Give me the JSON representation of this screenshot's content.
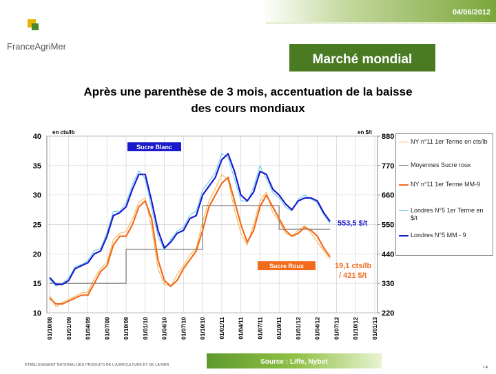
{
  "header": {
    "date": "04/06/2012",
    "logo": "FranceAgriMer",
    "section": "Marché mondial",
    "title": "Après une parenthèse de 3 mois, accentuation de la baisse des cours mondiaux"
  },
  "footer": {
    "institution": "ÉTABLISSEMENT NATIONAL DES PRODUITS DE L'AGRICULTURE ET DE LA MER",
    "source": "Source : Liffe, Nybot",
    "page": "• 4"
  },
  "chart_data": {
    "type": "line",
    "ylabel": "en cts/lb",
    "y2label": "en $/t",
    "annotations": [
      "Sucre Blanc",
      "Sucre Roux",
      "553,5 $/t",
      "19,1 cts/lb",
      "/ 421 $/t"
    ],
    "x": [
      "01/10/08",
      "01/11/08",
      "01/12/08",
      "01/01/09",
      "01/02/09",
      "01/03/09",
      "01/04/09",
      "01/05/09",
      "01/06/09",
      "01/07/09",
      "01/08/09",
      "01/09/09",
      "01/10/09",
      "01/11/09",
      "01/12/09",
      "01/01/10",
      "01/02/10",
      "01/03/10",
      "01/04/10",
      "01/05/10",
      "01/06/10",
      "01/07/10",
      "01/08/10",
      "01/09/10",
      "01/10/10",
      "01/11/10",
      "01/12/10",
      "01/01/11",
      "01/02/11",
      "01/03/11",
      "01/04/11",
      "01/05/11",
      "01/06/11",
      "01/07/11",
      "01/08/11",
      "01/09/11",
      "01/10/11",
      "01/11/11",
      "01/12/11",
      "01/01/12",
      "01/02/12",
      "01/03/12",
      "01/04/12",
      "01/05/12",
      "01/06/12"
    ],
    "xlim": [
      "01/10/08",
      "01/01/13"
    ],
    "xticks": [
      "01/10/08",
      "01/01/09",
      "01/04/09",
      "01/07/09",
      "01/10/09",
      "01/01/10",
      "01/04/10",
      "01/07/10",
      "01/10/10",
      "01/01/11",
      "01/04/11",
      "01/07/11",
      "01/10/11",
      "01/01/12",
      "01/04/12",
      "01/07/12",
      "01/10/12",
      "01/01/13"
    ],
    "ylim": [
      10,
      40
    ],
    "yticks": [
      10,
      15,
      20,
      25,
      30,
      35,
      40
    ],
    "y2lim": [
      220,
      880
    ],
    "y2ticks": [
      220,
      330,
      440,
      550,
      660,
      770,
      880
    ],
    "grid": true,
    "series": [
      {
        "name": "NY n°11 1er Terme en cts/lb",
        "color": "#f5b041",
        "width": 1,
        "values": [
          13,
          11,
          11.8,
          12.3,
          12.8,
          13.4,
          13.5,
          15.8,
          17.5,
          18.6,
          22.4,
          23.5,
          23.8,
          26,
          28.8,
          29.5,
          24.5,
          17.5,
          14.8,
          14.5,
          16.5,
          18,
          19.8,
          21,
          25.5,
          29,
          31,
          33.5,
          32.5,
          27.5,
          23.5,
          21.5,
          25,
          29,
          30.5,
          27,
          25.5,
          23.5,
          23,
          24,
          24.8,
          23.5,
          22,
          20.5,
          19.1
        ]
      },
      {
        "name": "Moyennes Sucre roux",
        "color": "#808080",
        "width": 1.3,
        "step": true,
        "values": [
          15,
          15,
          15,
          15,
          15,
          15,
          15,
          15,
          15,
          15,
          15,
          15,
          20.8,
          20.8,
          20.8,
          20.8,
          20.8,
          20.8,
          20.8,
          20.8,
          20.8,
          20.8,
          20.8,
          20.8,
          28.2,
          28.2,
          28.2,
          28.2,
          28.2,
          28.2,
          28.2,
          28.2,
          28.2,
          28.2,
          28.2,
          28.2,
          24.2,
          24.2,
          24.2,
          24.2,
          24.2,
          24.2,
          24.2,
          24.2,
          24.2
        ]
      },
      {
        "name": "NY n°11 1er Terme MM-9",
        "color": "#f26b1d",
        "width": 2.2,
        "values": [
          12.5,
          11.5,
          11.5,
          12,
          12.5,
          13,
          13,
          15,
          17,
          18,
          21.5,
          23,
          23,
          25,
          28,
          29,
          26,
          19,
          15.5,
          14.5,
          15.5,
          17.5,
          19,
          20.5,
          24,
          28,
          30,
          32,
          33,
          29,
          25,
          22,
          24,
          28,
          30,
          28,
          26,
          24,
          23,
          23.5,
          24.5,
          24,
          23,
          21,
          19.5
        ]
      },
      {
        "name": "Londres N°5 1er Terme en $/t",
        "color": "#5bc8f0",
        "width": 1,
        "axis": "y2",
        "values": [
          345,
          320,
          330,
          350,
          392,
          400,
          415,
          452,
          460,
          520,
          598,
          600,
          630,
          700,
          750,
          720,
          610,
          505,
          455,
          495,
          525,
          540,
          585,
          600,
          680,
          710,
          745,
          815,
          800,
          720,
          640,
          635,
          690,
          770,
          720,
          670,
          650,
          615,
          600,
          645,
          660,
          645,
          630,
          585,
          553.5
        ]
      },
      {
        "name": "Londres N°5 MM - 9",
        "color": "#1a1acc",
        "width": 2.2,
        "axis": "y2",
        "values": [
          352,
          326,
          326,
          341,
          385,
          396,
          407,
          440,
          451,
          506,
          583,
          594,
          616,
          682,
          737,
          737,
          638,
          528,
          462,
          484,
          517,
          528,
          572,
          583,
          660,
          693,
          726,
          792,
          814,
          748,
          660,
          638,
          671,
          748,
          737,
          682,
          660,
          627,
          605,
          638,
          649,
          649,
          638,
          594,
          561
        ]
      }
    ]
  }
}
